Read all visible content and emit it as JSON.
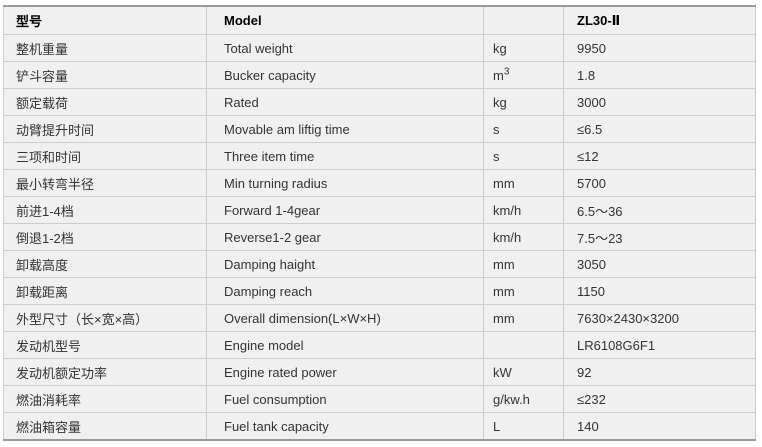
{
  "colors": {
    "page-bg": "#ffffff",
    "cell-bg": "#f0f0f0",
    "grid-border": "#cccccc",
    "frame-border": "#999999",
    "text": "#333333",
    "header-text": "#000000"
  },
  "table": {
    "header": {
      "cn": "型号",
      "en": "Model",
      "unit": "",
      "value": "ZL30-Ⅱ"
    },
    "rows": [
      {
        "cn": "整机重量",
        "en": "Total weight",
        "unit": "kg",
        "value": "9950"
      },
      {
        "cn": "铲斗容量",
        "en": "Bucker capacity",
        "unit": "m³",
        "value": "1.8"
      },
      {
        "cn": "额定载荷",
        "en": "Rated",
        "unit": "kg",
        "value": "3000"
      },
      {
        "cn": "动臂提升时间",
        "en": "Movable am liftig time",
        "unit": "s",
        "value": "≤6.5"
      },
      {
        "cn": "三项和时间",
        "en": "Three item time",
        "unit": "s",
        "value": "≤12"
      },
      {
        "cn": "最小转弯半径",
        "en": "Min turning radius",
        "unit": "mm",
        "value": "5700"
      },
      {
        "cn": "前进1-4档",
        "en": "Forward 1-4gear",
        "unit": "km/h",
        "value": "6.5～36"
      },
      {
        "cn": "倒退1-2档",
        "en": "Reverse1-2 gear",
        "unit": "km/h",
        "value": "7.5～23"
      },
      {
        "cn": "卸载高度",
        "en": "Damping haight",
        "unit": "mm",
        "value": "3050"
      },
      {
        "cn": "卸载距离",
        "en": "Damping reach",
        "unit": "mm",
        "value": "1150"
      },
      {
        "cn": "外型尺寸（长×宽×高）",
        "en": "Overall dimension(L×W×H)",
        "unit": "mm",
        "value": "7630×2430×3200"
      },
      {
        "cn": "发动机型号",
        "en": "Engine model",
        "unit": "",
        "value": "LR6108G6F1"
      },
      {
        "cn": "发动机额定功率",
        "en": "Engine rated power",
        "unit": "kW",
        "value": "92"
      },
      {
        "cn": "燃油消耗率",
        "en": "Fuel consumption",
        "unit": "g/kw.h",
        "value": "≤232"
      },
      {
        "cn": "燃油箱容量",
        "en": "Fuel tank capacity",
        "unit": "L",
        "value": "140"
      }
    ]
  }
}
